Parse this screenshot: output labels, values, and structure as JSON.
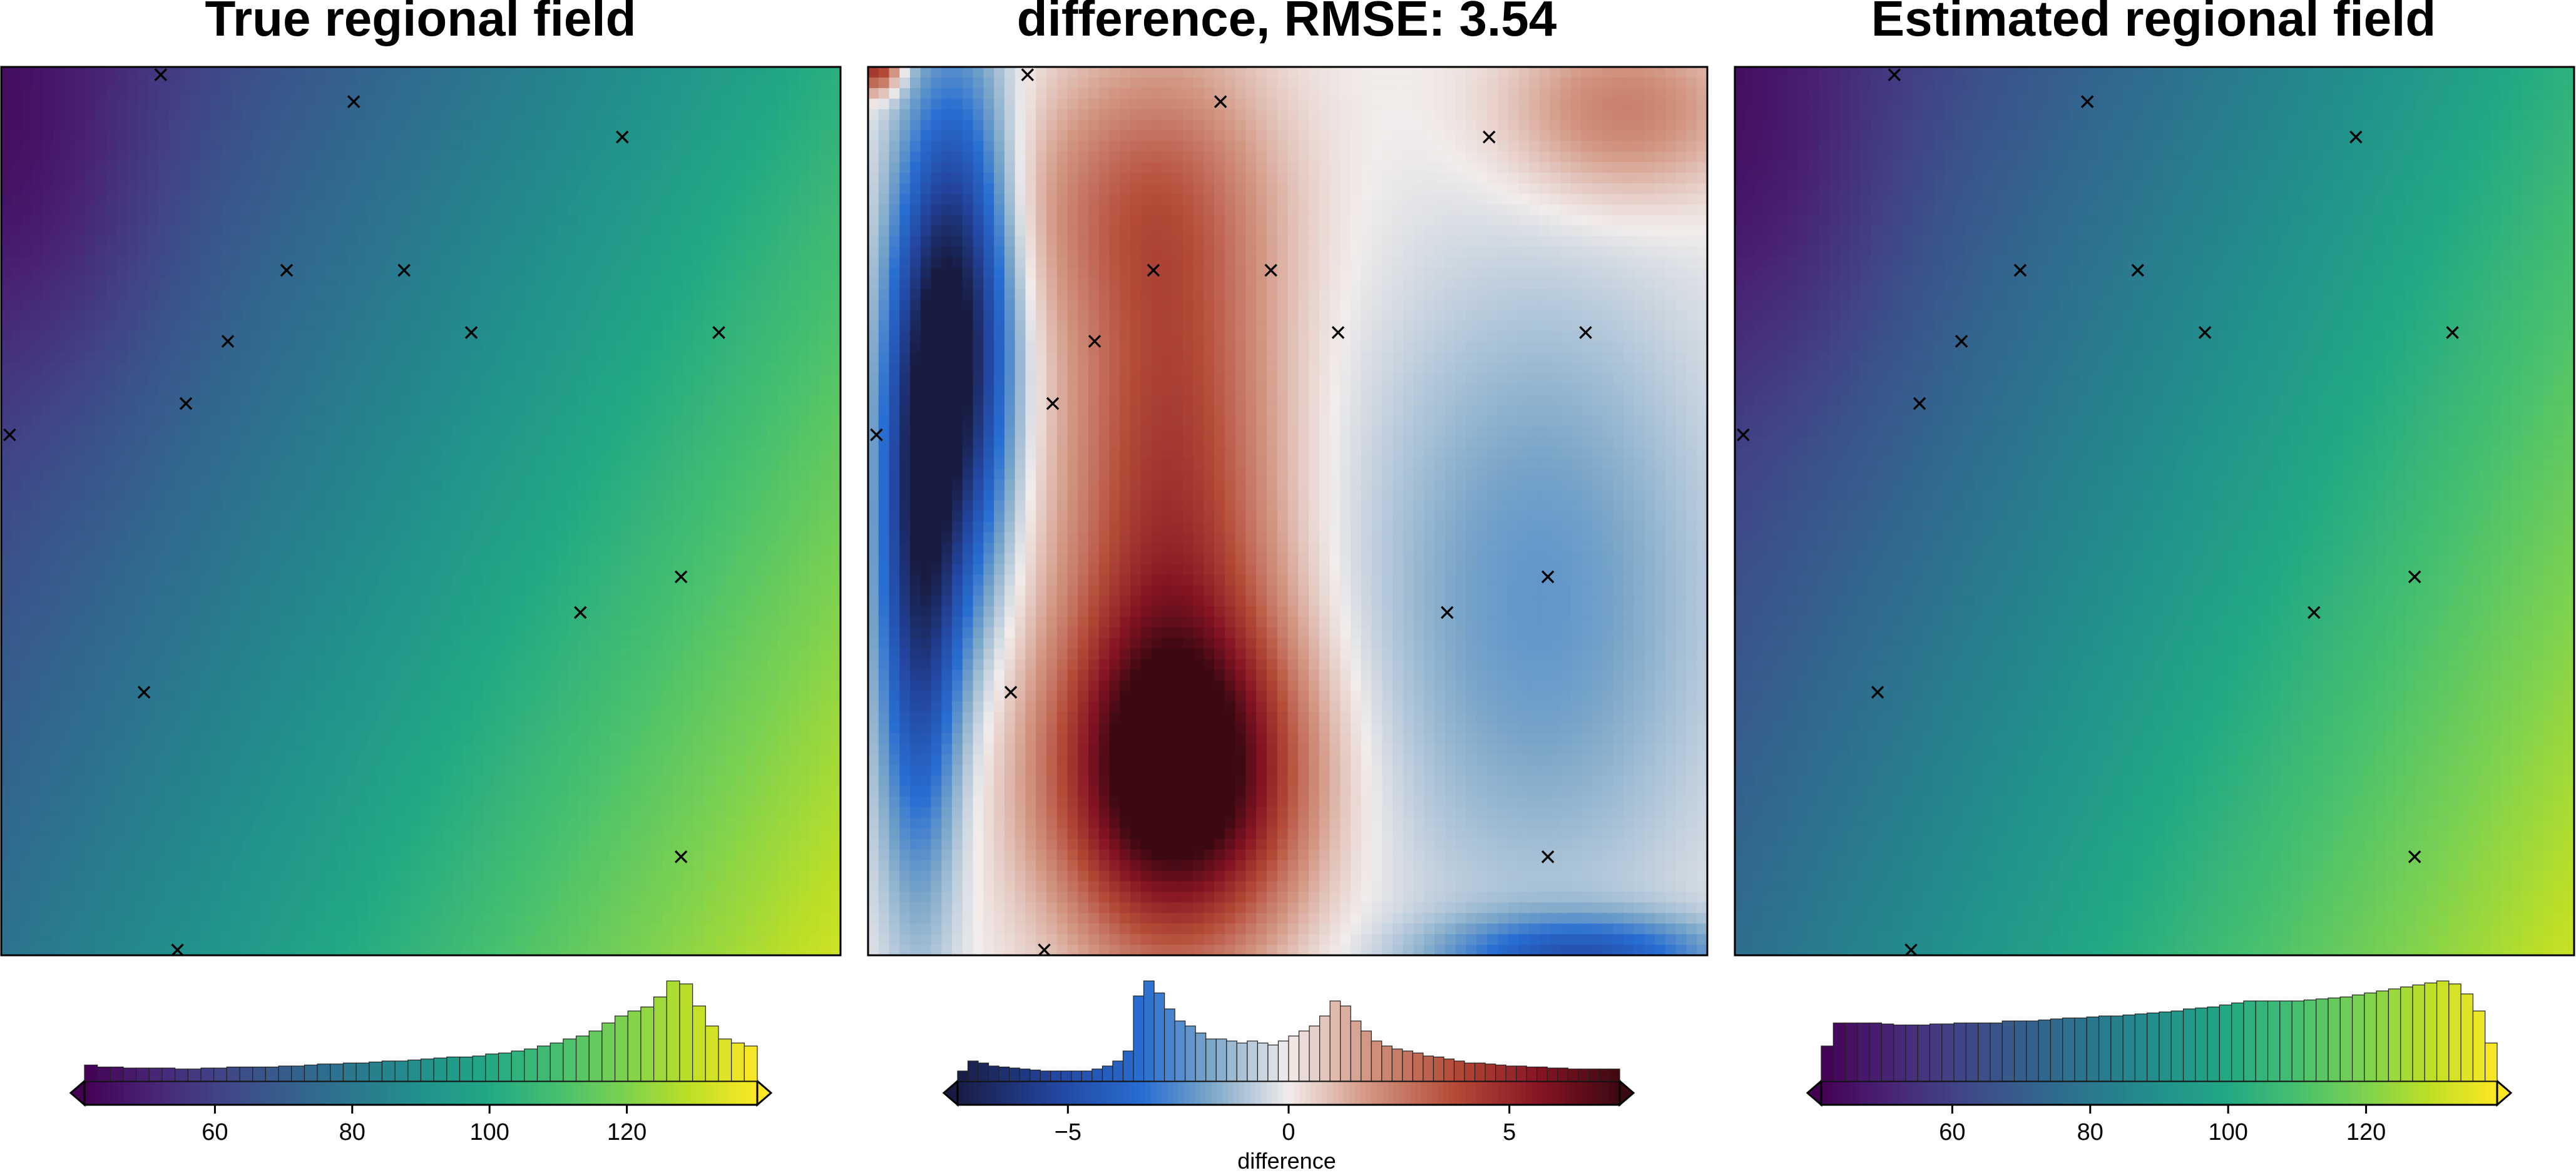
{
  "chart_data": [
    {
      "type": "heatmap",
      "title": "True regional field",
      "colormap": "viridis",
      "colorbar": {
        "range": [
          41,
          139
        ],
        "ticks": [
          60,
          80,
          100,
          120
        ],
        "tick_labels": [
          "60",
          "80",
          "100",
          "120"
        ],
        "label": "",
        "histogram": [
          0.16,
          0.14,
          0.14,
          0.13,
          0.13,
          0.13,
          0.13,
          0.12,
          0.12,
          0.13,
          0.13,
          0.14,
          0.14,
          0.14,
          0.14,
          0.15,
          0.15,
          0.16,
          0.17,
          0.17,
          0.18,
          0.18,
          0.19,
          0.2,
          0.2,
          0.21,
          0.22,
          0.23,
          0.24,
          0.24,
          0.25,
          0.27,
          0.28,
          0.3,
          0.32,
          0.35,
          0.38,
          0.42,
          0.45,
          0.5,
          0.58,
          0.65,
          0.7,
          0.74,
          0.84,
          1.0,
          0.97,
          0.75,
          0.55,
          0.42,
          0.38,
          0.35
        ]
      }
    },
    {
      "type": "heatmap",
      "title": "difference, RMSE: 3.54",
      "colormap": "balance",
      "colorbar": {
        "range": [
          -7.5,
          7.5
        ],
        "ticks": [
          -5,
          0,
          5
        ],
        "tick_labels": [
          "−5",
          "0",
          "5"
        ],
        "label": "difference",
        "histogram": [
          0.1,
          0.2,
          0.18,
          0.15,
          0.14,
          0.13,
          0.12,
          0.11,
          0.1,
          0.1,
          0.1,
          0.1,
          0.1,
          0.12,
          0.15,
          0.2,
          0.3,
          0.85,
          1.0,
          0.88,
          0.72,
          0.6,
          0.55,
          0.48,
          0.42,
          0.42,
          0.4,
          0.38,
          0.4,
          0.38,
          0.36,
          0.4,
          0.45,
          0.5,
          0.55,
          0.65,
          0.8,
          0.75,
          0.6,
          0.5,
          0.4,
          0.35,
          0.32,
          0.3,
          0.28,
          0.25,
          0.24,
          0.22,
          0.2,
          0.18,
          0.18,
          0.17,
          0.16,
          0.15,
          0.15,
          0.14,
          0.14,
          0.13,
          0.13,
          0.12,
          0.12,
          0.12,
          0.12,
          0.12
        ]
      }
    },
    {
      "type": "heatmap",
      "title": "Estimated regional field",
      "colormap": "viridis",
      "colorbar": {
        "range": [
          41,
          139
        ],
        "ticks": [
          60,
          80,
          100,
          120
        ],
        "tick_labels": [
          "60",
          "80",
          "100",
          "120"
        ],
        "label": "",
        "histogram": [
          0.35,
          0.58,
          0.58,
          0.58,
          0.58,
          0.57,
          0.56,
          0.56,
          0.56,
          0.57,
          0.57,
          0.58,
          0.58,
          0.58,
          0.58,
          0.6,
          0.6,
          0.6,
          0.61,
          0.62,
          0.63,
          0.63,
          0.64,
          0.65,
          0.65,
          0.66,
          0.67,
          0.68,
          0.69,
          0.7,
          0.72,
          0.73,
          0.74,
          0.76,
          0.78,
          0.8,
          0.8,
          0.8,
          0.8,
          0.8,
          0.81,
          0.82,
          0.83,
          0.84,
          0.86,
          0.88,
          0.9,
          0.92,
          0.94,
          0.96,
          0.98,
          1.0,
          0.97,
          0.87,
          0.7,
          0.38
        ]
      }
    }
  ],
  "markers": {
    "symbol": "×",
    "points": [
      [
        0.19,
        0.01
      ],
      [
        0.42,
        0.04
      ],
      [
        0.74,
        0.08
      ],
      [
        0.34,
        0.23
      ],
      [
        0.48,
        0.23
      ],
      [
        0.27,
        0.31
      ],
      [
        0.56,
        0.3
      ],
      [
        0.855,
        0.3
      ],
      [
        0.22,
        0.38
      ],
      [
        0.01,
        0.415
      ],
      [
        0.81,
        0.575
      ],
      [
        0.69,
        0.615
      ],
      [
        0.17,
        0.705
      ],
      [
        0.81,
        0.89
      ],
      [
        0.21,
        0.995
      ]
    ]
  },
  "colors": {
    "frame": "#000000",
    "marker": "#000000",
    "background": "#ffffff"
  }
}
